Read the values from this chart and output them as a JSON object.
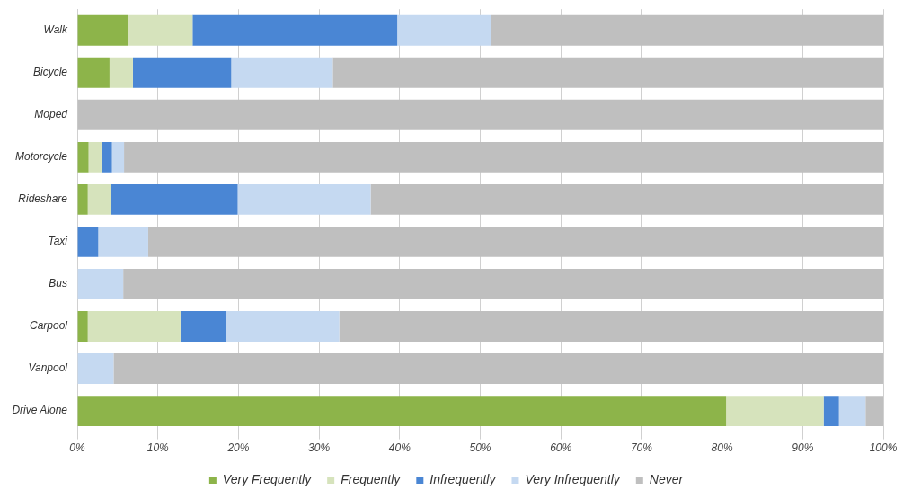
{
  "chart_data": {
    "type": "bar",
    "orientation": "horizontal",
    "stacked": true,
    "categories": [
      "Walk",
      "Bicycle",
      "Moped",
      "Motorcycle",
      "Rideshare",
      "Taxi",
      "Bus",
      "Carpool",
      "Vanpool",
      "Drive Alone"
    ],
    "series": [
      {
        "name": "Very Frequently",
        "color": "#8db44a",
        "values": [
          6.3,
          4,
          0,
          1.4,
          1.3,
          0,
          0,
          1.3,
          0,
          80.5
        ]
      },
      {
        "name": "Frequently",
        "color": "#d6e3bc",
        "values": [
          8,
          2.9,
          0,
          1.6,
          2.9,
          0,
          0,
          11.5,
          0,
          12.1
        ]
      },
      {
        "name": "Infrequently",
        "color": "#4a86d4",
        "values": [
          25.4,
          12.2,
          0,
          1.3,
          15.7,
          2.6,
          0,
          5.6,
          0,
          1.9
        ]
      },
      {
        "name": "Very Infrequently",
        "color": "#c5d9f1",
        "values": [
          11.6,
          12.6,
          0,
          1.5,
          16.5,
          6.2,
          5.7,
          14.1,
          4.5,
          3.3
        ]
      },
      {
        "name": "Never",
        "color": "#bfbfbf",
        "values": [
          48.7,
          68.3,
          100,
          94.2,
          63.6,
          91.2,
          94.3,
          67.5,
          95.5,
          2.2
        ]
      }
    ],
    "xlim": [
      0,
      100
    ],
    "xticks": [
      {
        "value": 0,
        "label": "0%"
      },
      {
        "value": 10,
        "label": "10%"
      },
      {
        "value": 20,
        "label": "20%"
      },
      {
        "value": 30,
        "label": "30%"
      },
      {
        "value": 40,
        "label": "40%"
      },
      {
        "value": 50,
        "label": "50%"
      },
      {
        "value": 60,
        "label": "60%"
      },
      {
        "value": 70,
        "label": "70%"
      },
      {
        "value": 80,
        "label": "80%"
      },
      {
        "value": 90,
        "label": "90%"
      },
      {
        "value": 100,
        "label": "100%"
      }
    ],
    "grid": "x",
    "legend": "bottom"
  }
}
